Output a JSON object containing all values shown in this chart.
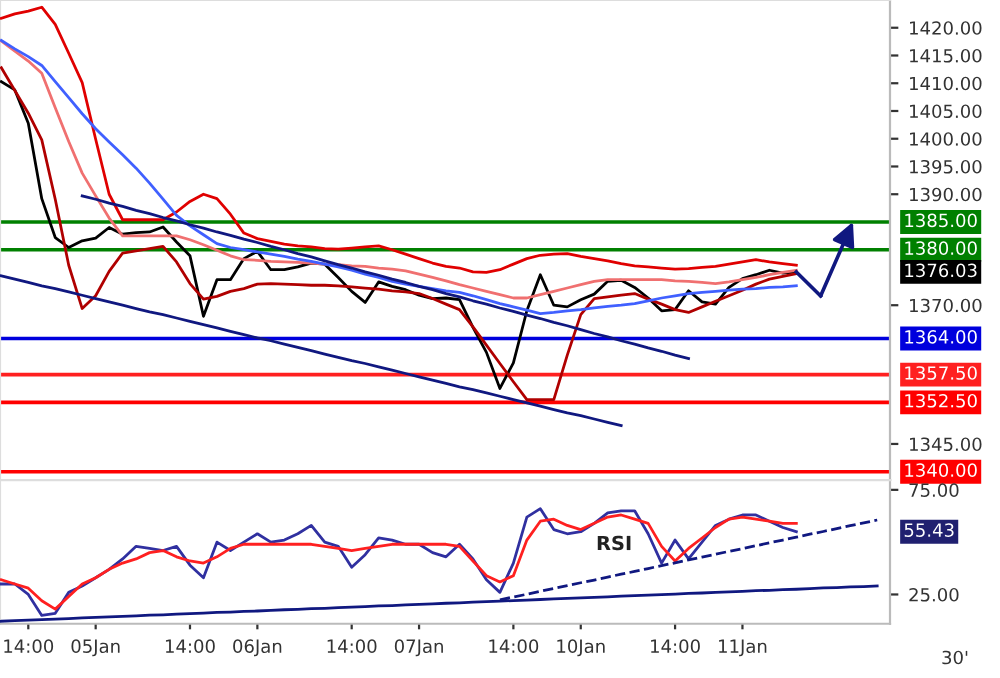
{
  "chart_data": [
    {
      "type": "line",
      "ylim": [
        1338.5,
        1425
      ],
      "tick_labels": "y",
      "categories": [
        null,
        null,
        null,
        null,
        null,
        null,
        null,
        null,
        null,
        null,
        null,
        null,
        null,
        null,
        null,
        null,
        null,
        null,
        null,
        null,
        null,
        null,
        null,
        null,
        null,
        null,
        null,
        null,
        null,
        null,
        null,
        null,
        null,
        null,
        null,
        null,
        null,
        null,
        null,
        null,
        null,
        null,
        null,
        null,
        null,
        null,
        null,
        null,
        null,
        null,
        null,
        null,
        null,
        null,
        null,
        null,
        null,
        null,
        null,
        null,
        null,
        null,
        null,
        null,
        null,
        null,
        null
      ],
      "yticks": [
        {
          "value": 1345,
          "label": "1345.00"
        },
        {
          "value": 1370,
          "label": "1370.00"
        },
        {
          "value": 1390,
          "label": "1390.00"
        },
        {
          "value": 1395,
          "label": "1395.00"
        },
        {
          "value": 1400,
          "label": "1400.00"
        },
        {
          "value": 1405,
          "label": "1405.00"
        },
        {
          "value": 1410,
          "label": "1410.00"
        },
        {
          "value": 1415,
          "label": "1415.00"
        },
        {
          "value": 1420,
          "label": "1420.00"
        }
      ],
      "series": [
        {
          "color": "#000000",
          "values": [
            1410.3,
            1408.8,
            1402.8,
            1389.2,
            1382.2,
            1380.4,
            1381.6,
            1382.1,
            1384.0,
            1382.8,
            1383.1,
            1383.2,
            1384.1,
            1381.4,
            1378.9,
            1368.0,
            1374.6,
            1374.6,
            1378.4,
            1379.7,
            1376.4,
            1376.4,
            1376.9,
            1377.6,
            1377.4,
            1375.0,
            1372.5,
            1370.5,
            1374.2,
            1373.4,
            1372.8,
            1371.8,
            1371.2,
            1371.3,
            1371.0,
            1366.0,
            1361.5,
            1355.0,
            1359.6,
            1369.0,
            1375.5,
            1370.0,
            1369.7,
            1371.0,
            1372.0,
            1374.3,
            1374.5,
            1373.2,
            1371.3,
            1369.0,
            1369.2,
            1372.6,
            1370.6,
            1370.2,
            1373.2,
            1374.8,
            1375.5,
            1376.3,
            1375.8,
            1376.0,
            null,
            null,
            null,
            null,
            null,
            null,
            null
          ]
        },
        {
          "color": "#e00000",
          "values": [
            1421.7,
            1422.5,
            1423.0,
            1423.7,
            1420.6,
            1415.4,
            1410.1,
            1399.9,
            1390.0,
            1385.4,
            1385.4,
            1385.4,
            1385.4,
            1386.8,
            1388.7,
            1390.0,
            1389.2,
            1386.4,
            1383.0,
            1382.0,
            1381.5,
            1381.0,
            1380.7,
            1380.5,
            1380.2,
            1380.1,
            1380.3,
            1380.5,
            1380.7,
            1380.0,
            1379.2,
            1378.4,
            1377.6,
            1377.0,
            1376.7,
            1376.0,
            1375.9,
            1376.4,
            1377.4,
            1378.4,
            1379.0,
            1379.2,
            1379.3,
            1378.8,
            1378.4,
            1378.0,
            1377.5,
            1377.1,
            1376.9,
            1376.7,
            1376.5,
            1376.6,
            1376.8,
            1377.0,
            1377.4,
            1377.8,
            1378.2,
            1377.8,
            1377.5,
            1377.2,
            null,
            null,
            null,
            null,
            null,
            null,
            null
          ]
        },
        {
          "color": "#f07070",
          "values": [
            1417.6,
            1415.8,
            1414.0,
            1411.8,
            1405.6,
            1399.5,
            1393.8,
            1389.7,
            1385.7,
            1382.5,
            1382.5,
            1382.5,
            1382.5,
            1382.5,
            1381.8,
            1380.9,
            1379.9,
            1378.9,
            1378.2,
            1378.1,
            1377.9,
            1377.8,
            1377.7,
            1377.6,
            1377.4,
            1377.3,
            1377.1,
            1377.0,
            1376.7,
            1376.5,
            1376.2,
            1375.6,
            1375.0,
            1374.4,
            1373.7,
            1373.1,
            1372.5,
            1371.9,
            1371.3,
            1371.3,
            1371.9,
            1372.5,
            1373.1,
            1373.7,
            1374.3,
            1374.6,
            1374.6,
            1374.6,
            1374.6,
            1374.6,
            1374.4,
            1374.3,
            1374.1,
            1373.9,
            1374.2,
            1374.6,
            1375.0,
            1375.5,
            1375.9,
            1376.3,
            null,
            null,
            null,
            null,
            null,
            null,
            null
          ]
        },
        {
          "color": "#b00000",
          "values": [
            1412.8,
            1408.7,
            1404.6,
            1399.8,
            1389.1,
            1377.2,
            1369.4,
            1371.7,
            1376.1,
            1379.4,
            1379.8,
            1380.2,
            1380.6,
            1377.8,
            1373.9,
            1371.1,
            1371.6,
            1372.5,
            1373.0,
            1373.8,
            1373.9,
            1373.8,
            1373.7,
            1373.6,
            1373.6,
            1373.5,
            1373.3,
            1373.1,
            1372.9,
            1372.6,
            1372.4,
            1372.1,
            1371.2,
            1370.2,
            1369.2,
            1366.1,
            1362.8,
            1359.5,
            1356.2,
            1353.0,
            1353.0,
            1353.0,
            1361.0,
            1368.3,
            1371.2,
            1371.5,
            1371.8,
            1372.1,
            1371.1,
            1370.2,
            1369.2,
            1368.7,
            1369.7,
            1370.7,
            1371.7,
            1372.7,
            1373.8,
            1374.7,
            1375.2,
            1375.7,
            null,
            null,
            null,
            null,
            null,
            null,
            null
          ]
        },
        {
          "color": "#4060ff",
          "values": [
            1417.7,
            1416.2,
            1414.8,
            1413.2,
            1410.3,
            1407.4,
            1404.5,
            1401.8,
            1399.4,
            1397.1,
            1394.7,
            1392.0,
            1389.1,
            1386.2,
            1384.3,
            1382.7,
            1381.1,
            1380.4,
            1380.0,
            1379.6,
            1379.2,
            1378.8,
            1378.3,
            1377.9,
            1377.4,
            1376.9,
            1376.3,
            1375.6,
            1375.0,
            1374.3,
            1373.8,
            1373.4,
            1373.0,
            1372.6,
            1372.3,
            1371.7,
            1371.0,
            1370.3,
            1369.7,
            1369.1,
            1368.5,
            1368.7,
            1369.0,
            1369.2,
            1369.5,
            1369.8,
            1370.0,
            1370.3,
            1370.8,
            1371.3,
            1371.7,
            1372.1,
            1372.3,
            1372.5,
            1372.7,
            1372.9,
            1373.0,
            1373.2,
            1373.3,
            1373.5,
            null,
            null,
            null,
            null,
            null,
            null,
            null
          ]
        },
        {
          "color": "#101880",
          "values": [
            1375.3,
            1374.7,
            1374.1,
            1373.5,
            1373.0,
            1372.4,
            1371.8,
            1371.2,
            1370.6,
            1370.0,
            1369.4,
            1368.8,
            1368.3,
            1367.7,
            1367.1,
            1366.5,
            1365.9,
            1365.3,
            1364.7,
            1364.1,
            1363.6,
            1363.0,
            1362.4,
            1361.8,
            1361.2,
            1360.6,
            1360.0,
            1359.5,
            1358.9,
            1358.3,
            1357.7,
            1357.1,
            1356.5,
            1355.9,
            1355.3,
            1354.8,
            1354.2,
            1353.6,
            1353.0,
            1352.4,
            1351.8,
            1351.2,
            1350.6,
            1350.1,
            1349.5,
            1348.9,
            1348.3,
            null,
            null,
            null,
            null,
            null,
            null,
            null,
            null,
            null,
            null,
            null,
            null,
            null,
            null,
            null,
            null,
            null,
            null,
            null,
            null
          ]
        },
        {
          "color": "#101880",
          "values": [
            null,
            null,
            null,
            null,
            null,
            null,
            1389.7,
            1389.1,
            1388.4,
            1387.8,
            1387.1,
            1386.5,
            1385.8,
            1385.2,
            1384.5,
            1383.9,
            1383.2,
            1382.6,
            1381.9,
            1381.3,
            1380.6,
            1380.0,
            1379.3,
            1378.7,
            1378.0,
            1377.3,
            1376.7,
            1376.0,
            1375.4,
            1374.7,
            1374.1,
            1373.4,
            1372.8,
            1372.1,
            1371.5,
            1370.8,
            1370.2,
            1369.5,
            1368.9,
            1368.2,
            1367.6,
            1366.9,
            1366.3,
            1365.6,
            1364.9,
            1364.3,
            1363.6,
            1363.0,
            1362.3,
            1361.7,
            1361.0,
            1360.4,
            null,
            null,
            null,
            null,
            null,
            null,
            null,
            null,
            null,
            null,
            null,
            null,
            null,
            null,
            null
          ]
        }
      ],
      "ref_lines": [
        {
          "axis": "y",
          "value": 1385,
          "label": "1385.00",
          "color": "#008000"
        },
        {
          "axis": "y",
          "value": 1380,
          "label": "1380.00",
          "color": "#008000"
        },
        {
          "axis": "y",
          "value": 1364,
          "label": "1364.00",
          "color": "#0000dd"
        },
        {
          "axis": "y",
          "value": 1357.5,
          "label": "1357.50",
          "color": "#ff2020"
        },
        {
          "axis": "y",
          "value": 1352.5,
          "label": "1352.50",
          "color": "#ff0000"
        },
        {
          "axis": "y",
          "value": 1340,
          "label": "1340.00",
          "color": "#ff0000"
        }
      ],
      "annotations": [
        "1376.03"
      ]
    },
    {
      "type": "line",
      "ylim": [
        11,
        79.7
      ],
      "categories": [
        null,
        null,
        "14:00",
        null,
        null,
        null,
        null,
        "05Jan",
        null,
        null,
        null,
        null,
        null,
        null,
        "14:00",
        null,
        null,
        null,
        null,
        "06Jan",
        null,
        null,
        null,
        null,
        null,
        null,
        "14:00",
        null,
        null,
        null,
        null,
        "07Jan",
        null,
        null,
        null,
        null,
        null,
        null,
        "14:00",
        null,
        null,
        null,
        null,
        "10Jan",
        null,
        null,
        null,
        null,
        null,
        null,
        "14:00",
        null,
        null,
        null,
        null,
        "11Jan",
        null,
        null,
        null,
        null,
        null,
        null,
        null,
        null,
        null,
        null,
        null
      ],
      "yticks": [
        {
          "value": 25,
          "label": "25.00"
        },
        {
          "value": 75,
          "label": "75.00"
        }
      ],
      "series": [
        {
          "color": "#3030a0",
          "values": [
            30,
            30,
            25,
            15,
            16,
            26,
            29,
            33,
            37,
            42,
            48,
            47,
            46,
            48,
            39,
            33,
            50,
            46,
            50,
            54,
            50,
            51,
            54,
            58,
            50,
            48,
            38,
            44,
            52,
            51,
            49,
            49,
            45,
            43,
            49,
            42,
            32,
            26,
            40,
            62,
            66,
            56,
            54,
            55,
            59,
            64,
            65,
            65,
            54,
            40,
            51,
            42,
            50,
            58,
            61,
            63,
            63,
            60,
            57,
            55,
            null,
            null,
            null,
            null,
            null,
            null,
            null
          ]
        },
        {
          "color": "#ff2020",
          "values": [
            32,
            30,
            28,
            22,
            18,
            24,
            30,
            33,
            37,
            40,
            42,
            45,
            46,
            43,
            41,
            40,
            43,
            47,
            49,
            49,
            49,
            49,
            49,
            49,
            48,
            47,
            46,
            47,
            48,
            49,
            49,
            49,
            49,
            49,
            48,
            41,
            34,
            31,
            34,
            51,
            60,
            61,
            58,
            56,
            59,
            62,
            63,
            61,
            59,
            48,
            41,
            47,
            52,
            57,
            61,
            62,
            61,
            60,
            59,
            59,
            null,
            null,
            null,
            null,
            null,
            null,
            null
          ]
        },
        {
          "color": "#101880",
          "values": [
            12.2,
            12.5,
            12.7,
            13.0,
            13.2,
            13.5,
            13.8,
            14.0,
            14.3,
            14.5,
            14.8,
            15.1,
            15.3,
            15.6,
            15.8,
            16.1,
            16.4,
            16.6,
            16.9,
            17.1,
            17.4,
            17.7,
            17.9,
            18.2,
            18.4,
            18.7,
            19.0,
            19.2,
            19.5,
            19.7,
            20.0,
            20.3,
            20.5,
            20.8,
            21.0,
            21.3,
            21.6,
            21.8,
            22.1,
            22.3,
            22.6,
            22.9,
            23.1,
            23.4,
            23.6,
            23.9,
            24.2,
            24.4,
            24.7,
            24.9,
            25.2,
            25.5,
            25.7,
            26.0,
            26.2,
            26.5,
            26.8,
            27.0,
            27.3,
            27.5,
            27.8,
            28.1,
            28.3,
            28.6,
            28.8,
            29.1,
            null
          ]
        },
        {
          "color": "#101880",
          "line_style": "dashed",
          "values": [
            null,
            null,
            null,
            null,
            null,
            null,
            null,
            null,
            null,
            null,
            null,
            null,
            null,
            null,
            null,
            null,
            null,
            null,
            null,
            null,
            null,
            null,
            null,
            null,
            null,
            null,
            null,
            null,
            null,
            null,
            null,
            null,
            null,
            null,
            null,
            null,
            null,
            22.4,
            23.8,
            25.1,
            26.5,
            27.9,
            29.2,
            30.6,
            31.9,
            33.3,
            34.7,
            36.0,
            37.4,
            38.8,
            40.1,
            41.5,
            42.9,
            44.2,
            45.6,
            46.9,
            48.3,
            49.7,
            51.0,
            52.4,
            53.8,
            55.1,
            56.5,
            57.9,
            59.2,
            60.6,
            null
          ]
        }
      ],
      "annotations": [
        "RSI",
        "55.43",
        "30'"
      ]
    }
  ]
}
